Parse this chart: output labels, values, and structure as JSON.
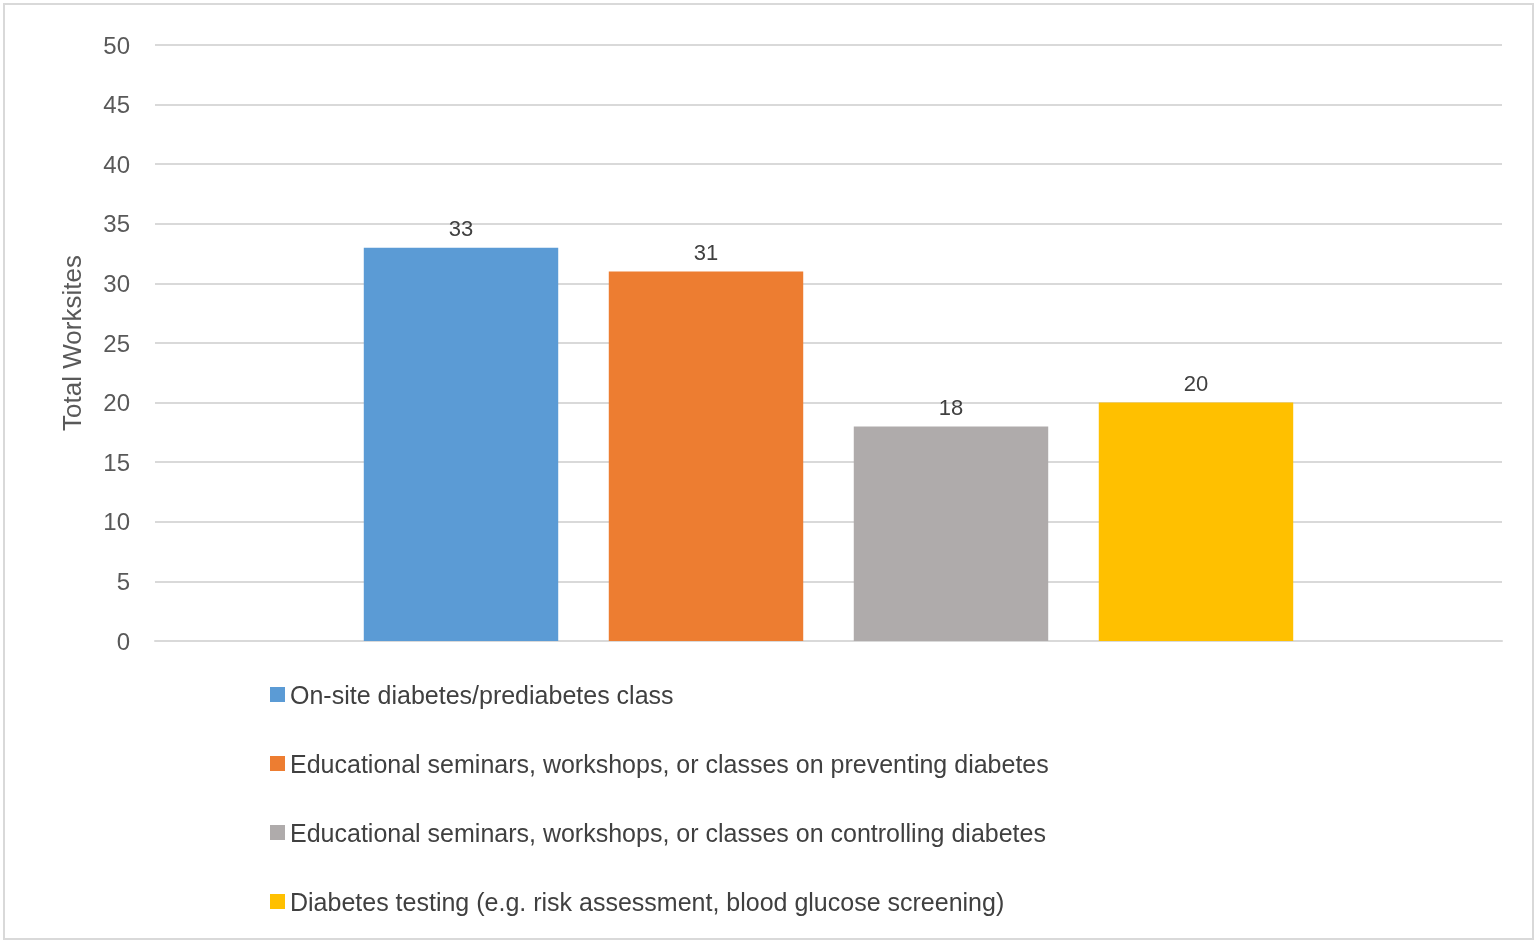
{
  "chart_data": {
    "type": "bar",
    "ylabel": "Total Worksites",
    "categories": [
      null
    ],
    "series": [
      {
        "name": "On-site diabetes/prediabetes class",
        "color": "#5b9bd5",
        "values": [
          33
        ]
      },
      {
        "name": "Educational seminars, workshops, or classes on preventing diabetes",
        "color": "#ed7d31",
        "values": [
          31
        ]
      },
      {
        "name": "Educational seminars, workshops, or classes on controlling diabetes",
        "color": "#afabab",
        "values": [
          18
        ]
      },
      {
        "name": "Diabetes testing (e.g. risk assessment, blood glucose screening)",
        "color": "#ffc000",
        "values": [
          20
        ]
      }
    ],
    "ylim": [
      0,
      50
    ],
    "yticks": [
      0,
      5,
      10,
      15,
      20,
      25,
      30,
      35,
      40,
      45,
      50
    ],
    "grid": "y",
    "legend": "bottom",
    "data_labels": true
  }
}
